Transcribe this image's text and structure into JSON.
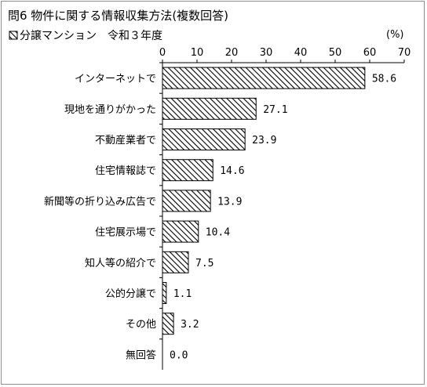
{
  "chart_data": {
    "type": "bar",
    "orientation": "horizontal",
    "title": "問6 物件に関する情報収集方法(複数回答)",
    "legend_label": "分譲マンション　令和３年度",
    "unit_label": "(%)",
    "xlim": [
      0,
      70
    ],
    "xticks": [
      0,
      10,
      20,
      30,
      40,
      50,
      60,
      70
    ],
    "categories": [
      "インターネットで",
      "現地を通りがかった",
      "不動産業者で",
      "住宅情報誌で",
      "新聞等の折り込み広告で",
      "住宅展示場で",
      "知人等の紹介で",
      "公的分譲で",
      "その他",
      "無回答"
    ],
    "values": [
      58.6,
      27.1,
      23.9,
      14.6,
      13.9,
      10.4,
      7.5,
      1.1,
      3.2,
      0.0
    ],
    "value_labels": [
      "58.6",
      "27.1",
      "23.9",
      "14.6",
      "13.9",
      "10.4",
      "7.5",
      "1.1",
      "3.2",
      "0.0"
    ],
    "bar_fill": "diagonal-hatch",
    "colors": {
      "bar_stroke": "#000000",
      "hatch": "#000000",
      "frame": "#8c8c8c"
    }
  }
}
